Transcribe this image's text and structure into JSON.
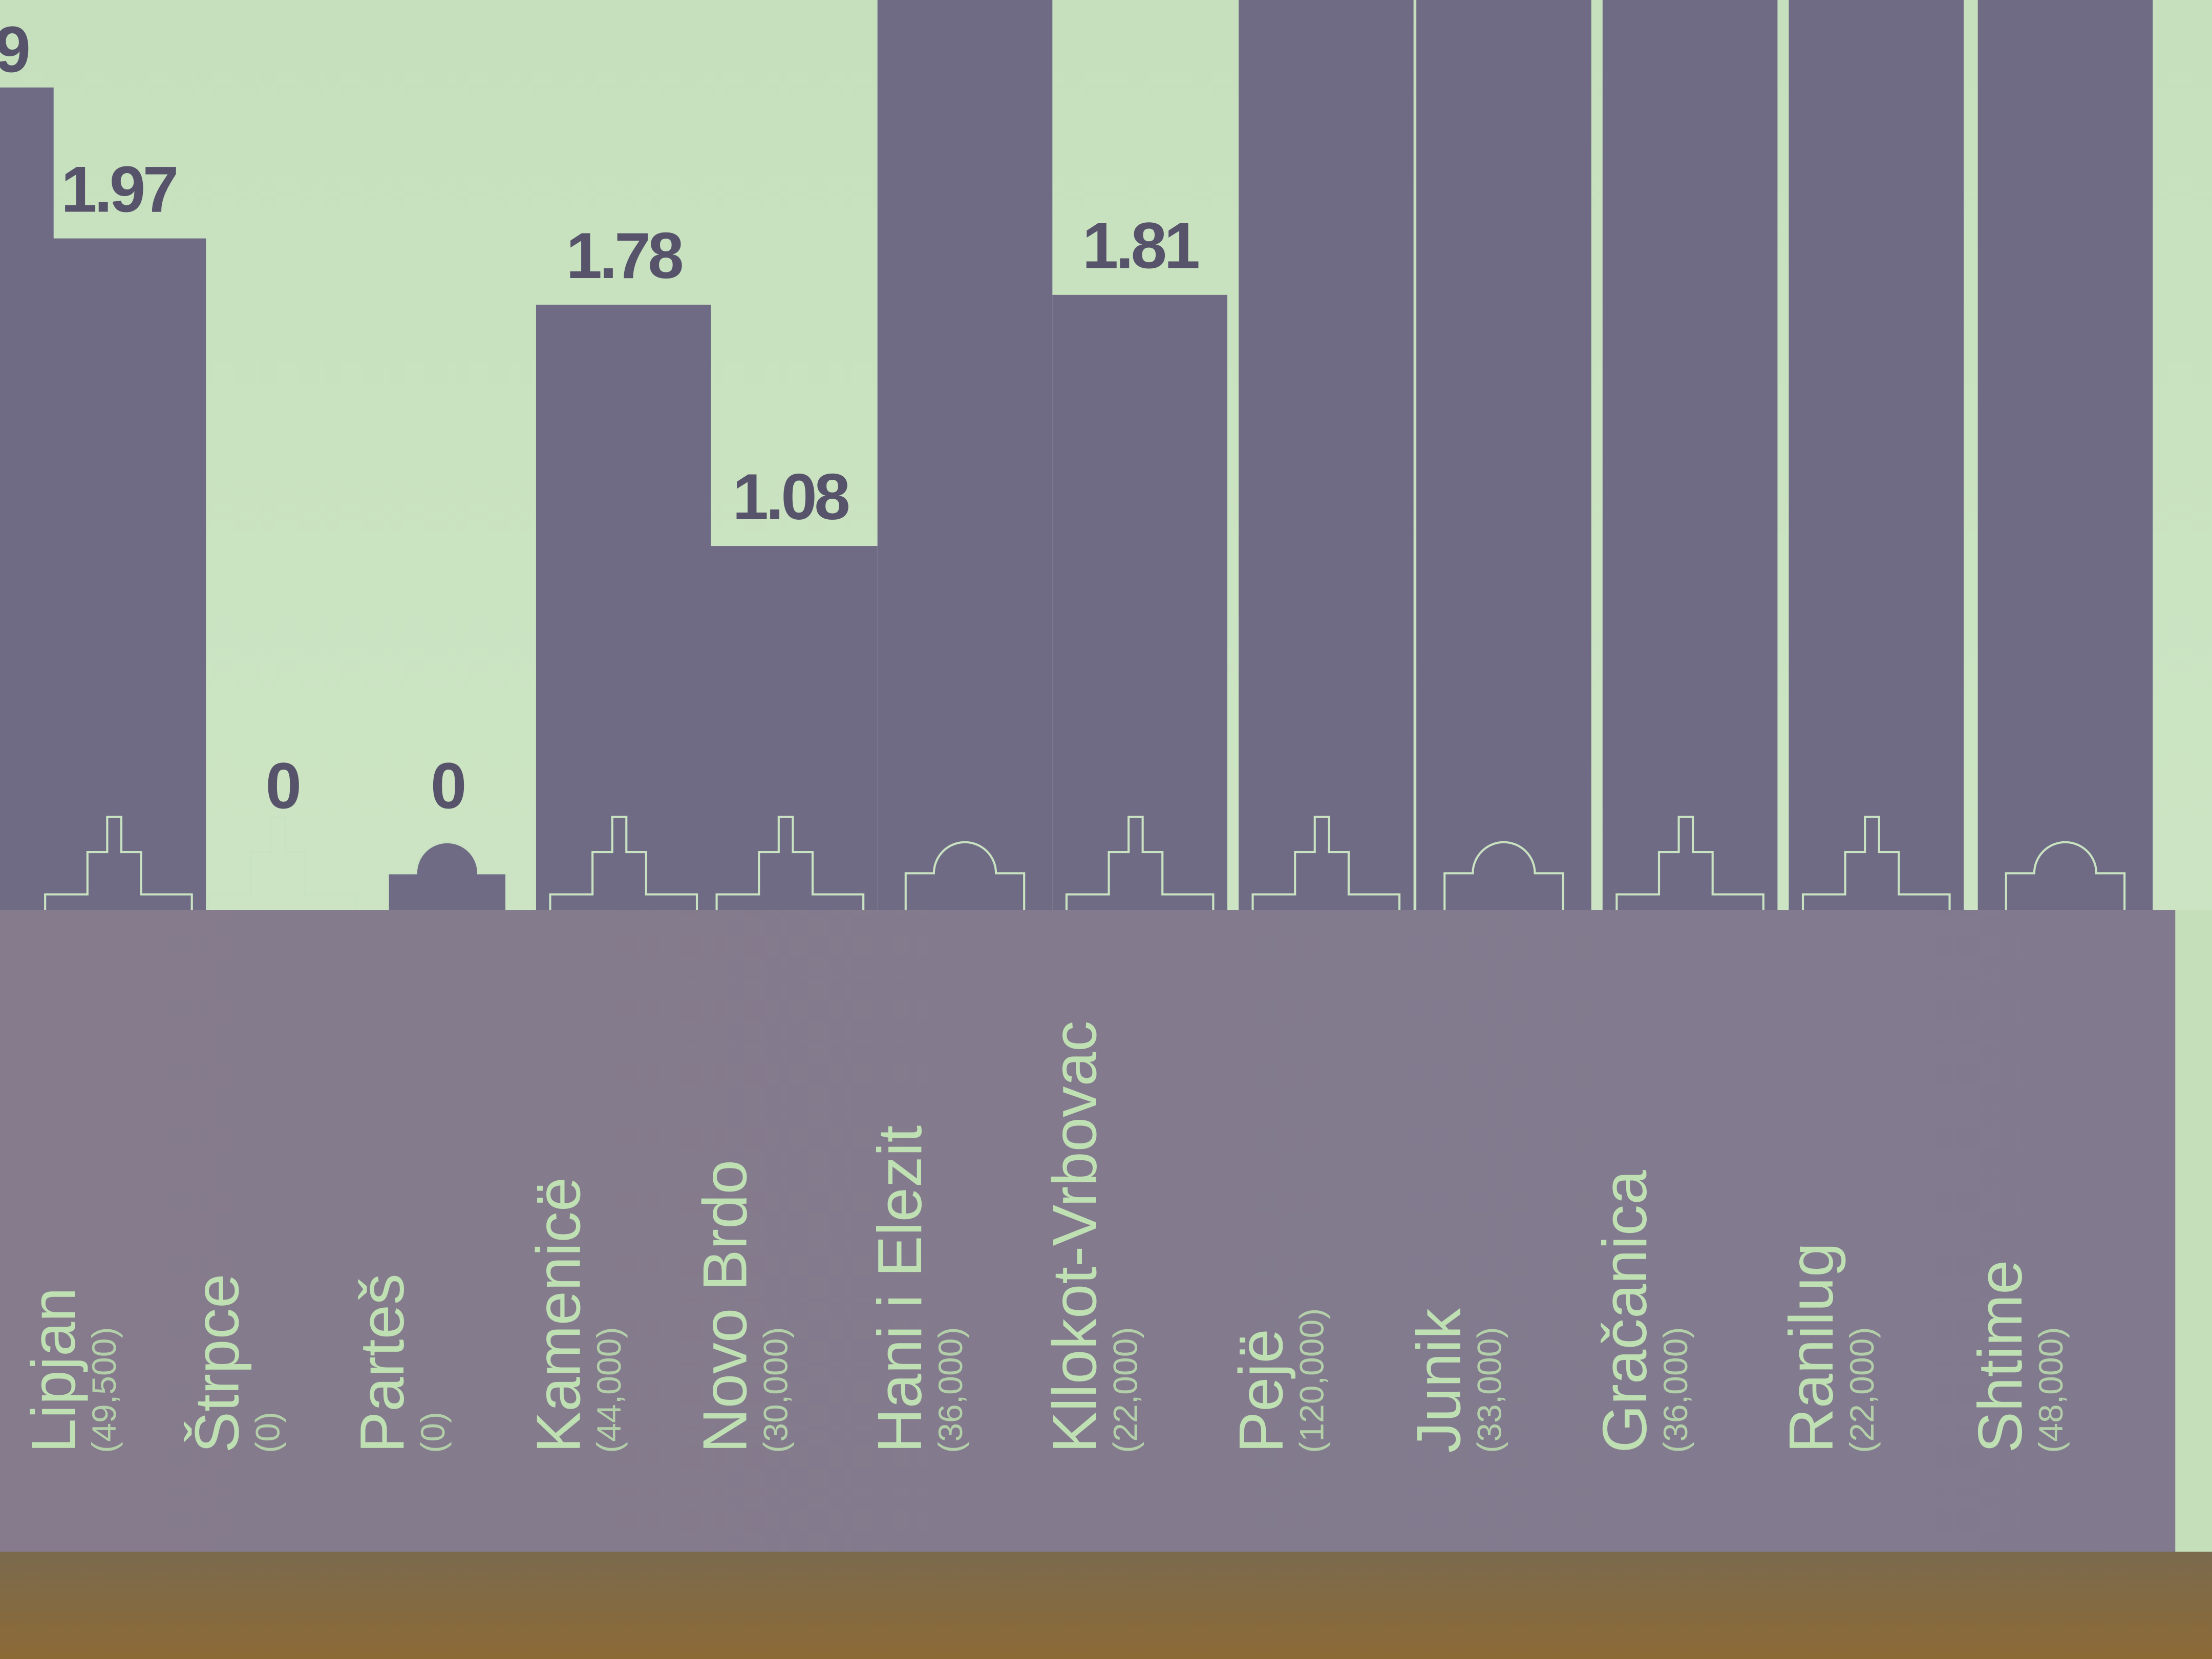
{
  "chart_data": {
    "type": "bar",
    "partial_left_label": "9",
    "categories": [
      "Lipjan",
      "Štrpce",
      "Parteš",
      "Kamenicë",
      "Novo Brdo",
      "Hani i Elezit",
      "Kllokot-Vrbovac",
      "Pejë",
      "Junik",
      "Gračanica",
      "Ranilug",
      "Shtime"
    ],
    "populations": [
      "(49,500)",
      "(0)",
      "(0)",
      "(44,000)",
      "(30,000)",
      "(36,000)",
      "(22,000)",
      "(120,000)",
      "(33,000)",
      "(36,000)",
      "(22,000)",
      "(48,000)"
    ],
    "values": [
      1.97,
      0,
      0,
      1.78,
      1.08,
      null,
      1.81,
      null,
      null,
      null,
      null,
      null
    ],
    "value_labels": [
      "1.97",
      "0",
      "0",
      "1.78",
      "1.08",
      "",
      "1.81",
      "",
      "",
      "",
      "",
      ""
    ],
    "title": "",
    "xlabel": "",
    "ylabel": "",
    "grid": false
  },
  "colors": {
    "background": "#c9e2c1",
    "bar": "#6f6b85",
    "label_panel": "#837b8d",
    "label_text": "#bfe0b3",
    "value_text": "#56536b"
  }
}
